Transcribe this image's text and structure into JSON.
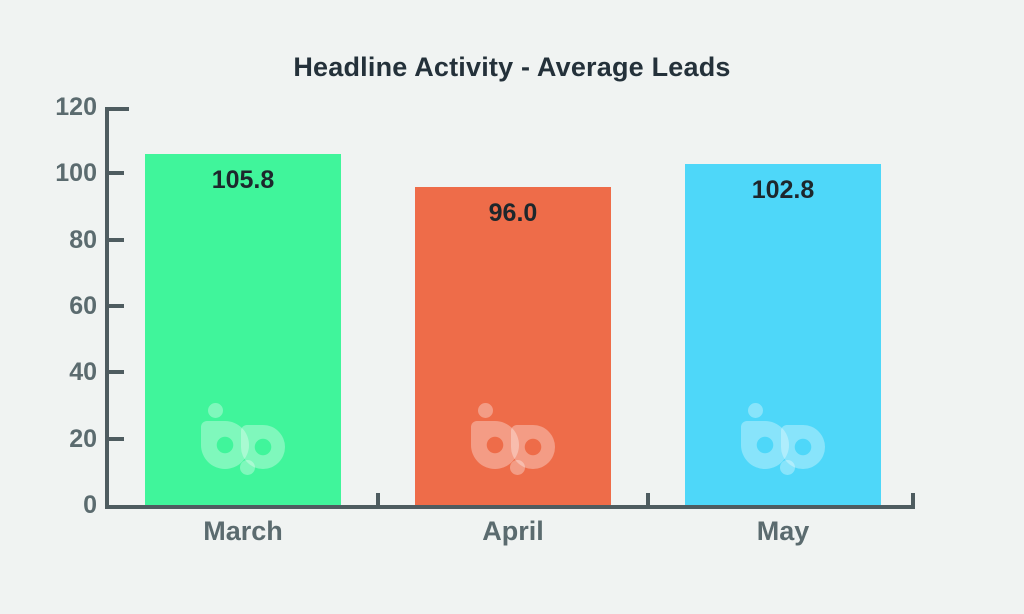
{
  "title": "Headline Activity - Average Leads",
  "colors": {
    "background": "#f0f3f2",
    "axis": "#4e5c60",
    "tick_label": "#5b6b6f",
    "category_label": "#5b6b6f",
    "title_text": "#24313a",
    "value_label": "#1d272c",
    "watermark": "rgba(255,255,255,0.33)"
  },
  "watermark_icon": "bp-logo-watermark",
  "chart_data": {
    "type": "bar",
    "title": "Headline Activity - Average Leads",
    "categories": [
      "March",
      "April",
      "May"
    ],
    "values": [
      105.8,
      96.0,
      102.8
    ],
    "value_labels": [
      "105.8",
      "96.0",
      "102.8"
    ],
    "bar_colors": [
      "#40f59b",
      "#ee6c49",
      "#4ed7f9"
    ],
    "xlabel": "",
    "ylabel": "",
    "ylim": [
      0,
      120
    ],
    "yticks": [
      0,
      20,
      40,
      60,
      80,
      100,
      120
    ],
    "ytick_labels": [
      "0",
      "20",
      "40",
      "60",
      "80",
      "100",
      "120"
    ],
    "grid": false,
    "legend": false
  }
}
